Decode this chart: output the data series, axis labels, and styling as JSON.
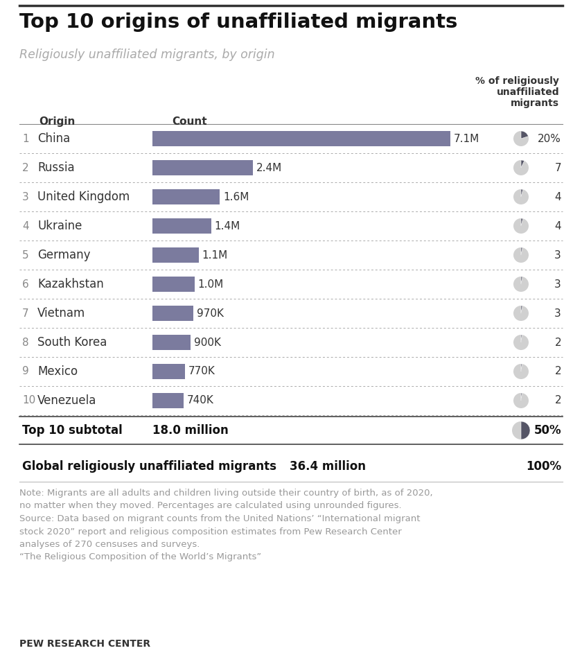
{
  "title": "Top 10 origins of unaffiliated migrants",
  "subtitle": "Religiously unaffiliated migrants, by origin",
  "col_header_origin": "Origin",
  "col_header_count": "Count",
  "col_header_pct": "% of religiously\nunaffiliated\nmigrants",
  "countries": [
    "China",
    "Russia",
    "United Kingdom",
    "Ukraine",
    "Germany",
    "Kazakhstan",
    "Vietnam",
    "South Korea",
    "Mexico",
    "Venezuela"
  ],
  "ranks": [
    1,
    2,
    3,
    4,
    5,
    6,
    7,
    8,
    9,
    10
  ],
  "values": [
    7100,
    2400,
    1600,
    1400,
    1100,
    1000,
    970,
    900,
    770,
    740
  ],
  "value_labels": [
    "7.1M",
    "2.4M",
    "1.6M",
    "1.4M",
    "1.1M",
    "1.0M",
    "970K",
    "900K",
    "770K",
    "740K"
  ],
  "pct_labels": [
    "20%",
    "7",
    "4",
    "4",
    "3",
    "3",
    "3",
    "2",
    "2",
    "2"
  ],
  "pct_values": [
    20,
    7,
    4,
    4,
    3,
    3,
    3,
    2,
    2,
    2
  ],
  "bar_color": "#7b7b9e",
  "subtotal_label": "Top 10 subtotal",
  "subtotal_count": "18.0 million",
  "subtotal_pct": "50%",
  "subtotal_pct_value": 50,
  "global_label": "Global religiously unaffiliated migrants",
  "global_count": "36.4 million",
  "global_pct": "100%",
  "note_text": "Note: Migrants are all adults and children living outside their country of birth, as of 2020,\nno matter when they moved. Percentages are calculated using unrounded figures.\nSource: Data based on migrant counts from the United Nations’ “International migrant\nstock 2020” report and religious composition estimates from Pew Research Center\nanalyses of 270 censuses and surveys.\n“The Religious Composition of the World’s Migrants”",
  "footer": "PEW RESEARCH CENTER",
  "bg_color": "#ffffff",
  "max_bar_value": 7100,
  "fig_width": 8.4,
  "fig_height": 9.58,
  "dpi": 100
}
